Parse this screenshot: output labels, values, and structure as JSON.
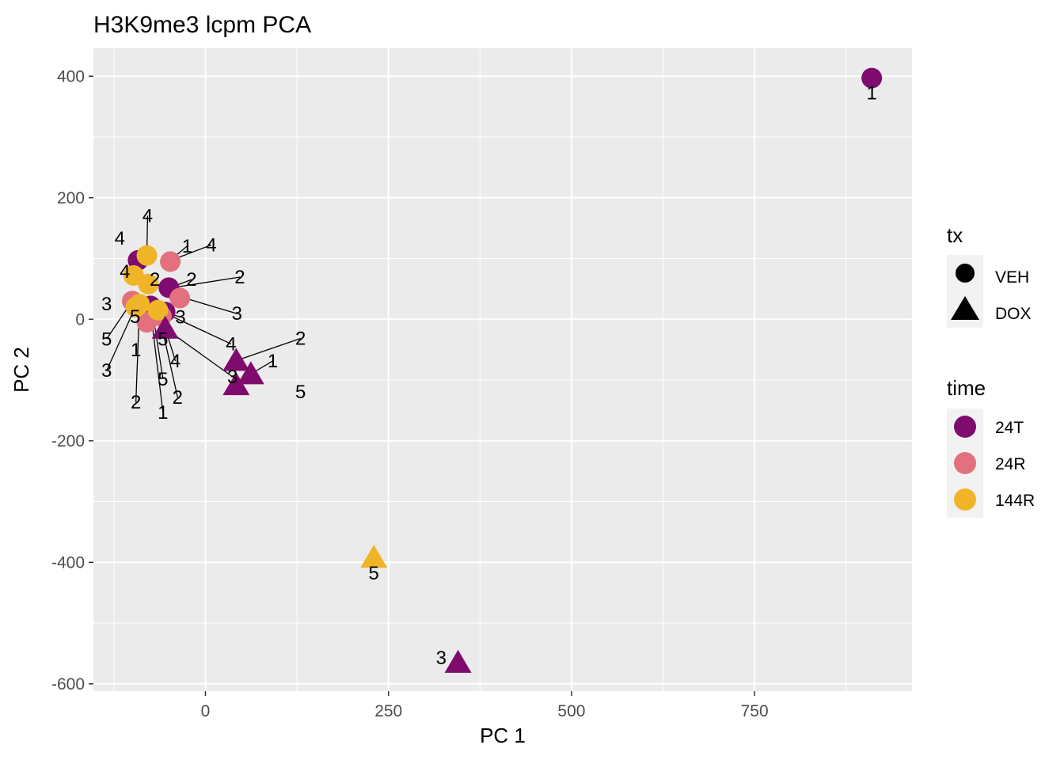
{
  "chart_data": {
    "type": "scatter",
    "title": "H3K9me3 lcpm PCA",
    "xlabel": "PC 1",
    "ylabel": "PC 2",
    "xlim": [
      -153,
      965
    ],
    "ylim": [
      -612,
      446
    ],
    "xticks": [
      0,
      250,
      500,
      750
    ],
    "xtick_labels": [
      "0",
      "250",
      "500",
      "750"
    ],
    "yticks": [
      -600,
      -400,
      -200,
      0,
      200,
      400
    ],
    "ytick_labels": [
      "-600",
      "-400",
      "-200",
      "0",
      "200",
      "400"
    ],
    "grid": true,
    "colors": {
      "24T": "#7f0b6e",
      "24R": "#e2707e",
      "144R": "#f0b429"
    },
    "legends": {
      "position": "right",
      "tx": {
        "title": "tx",
        "items": [
          {
            "label": "VEH",
            "shape": "circle"
          },
          {
            "label": "DOX",
            "shape": "triangle"
          }
        ]
      },
      "time": {
        "title": "time",
        "items": [
          {
            "label": "24T"
          },
          {
            "label": "24R"
          },
          {
            "label": "144R"
          }
        ]
      }
    },
    "points": [
      {
        "x": 910,
        "y": 397,
        "tx": "VEH",
        "time": "24T",
        "label": "1"
      },
      {
        "x": -92,
        "y": 97,
        "tx": "VEH",
        "time": "24T",
        "label": "4"
      },
      {
        "x": -50,
        "y": 52,
        "tx": "VEH",
        "time": "24T",
        "label": "2"
      },
      {
        "x": -75,
        "y": 22,
        "tx": "VEH",
        "time": "24T",
        "label": "5"
      },
      {
        "x": -55,
        "y": 12,
        "tx": "VEH",
        "time": "24T",
        "label": "3"
      },
      {
        "x": -48,
        "y": 95,
        "tx": "VEH",
        "time": "24R",
        "label": "1"
      },
      {
        "x": -35,
        "y": 35,
        "tx": "VEH",
        "time": "24R",
        "label": "2"
      },
      {
        "x": -100,
        "y": 30,
        "tx": "VEH",
        "time": "24R",
        "label": "3"
      },
      {
        "x": -60,
        "y": 5,
        "tx": "VEH",
        "time": "24R",
        "label": "4"
      },
      {
        "x": -80,
        "y": -5,
        "tx": "VEH",
        "time": "24R",
        "label": "5"
      },
      {
        "x": -80,
        "y": 105,
        "tx": "VEH",
        "time": "144R",
        "label": "4"
      },
      {
        "x": -78,
        "y": 58,
        "tx": "VEH",
        "time": "144R",
        "label": "2"
      },
      {
        "x": -98,
        "y": 72,
        "tx": "VEH",
        "time": "144R",
        "label": "4"
      },
      {
        "x": -90,
        "y": 25,
        "tx": "VEH",
        "time": "144R",
        "label": "5"
      },
      {
        "x": -95,
        "y": 20,
        "tx": "VEH",
        "time": "144R",
        "label": "3"
      },
      {
        "x": -65,
        "y": 15,
        "tx": "VEH",
        "time": "144R",
        "label": "1"
      },
      {
        "x": 42,
        "y": -68,
        "tx": "DOX",
        "time": "24T",
        "label": "2"
      },
      {
        "x": 62,
        "y": -90,
        "tx": "DOX",
        "time": "24T",
        "label": "1"
      },
      {
        "x": 42,
        "y": -108,
        "tx": "DOX",
        "time": "24T",
        "label": "5"
      },
      {
        "x": 345,
        "y": -565,
        "tx": "DOX",
        "time": "24T",
        "label": "3"
      },
      {
        "x": -55,
        "y": -15,
        "tx": "DOX",
        "time": "24T",
        "label": "5"
      },
      {
        "x": 230,
        "y": -392,
        "tx": "DOX",
        "time": "144R",
        "label": "5"
      }
    ],
    "labels": [
      {
        "text": "1",
        "x": 910,
        "y": 362
      },
      {
        "text": "4",
        "x": -79,
        "y": 160,
        "px": -80,
        "py": 108
      },
      {
        "text": "4",
        "x": -117,
        "y": 123
      },
      {
        "text": "4",
        "x": -110,
        "y": 68
      },
      {
        "text": "1",
        "x": -25,
        "y": 110,
        "px": -50,
        "py": 95
      },
      {
        "text": "4",
        "x": 8,
        "y": 112,
        "px": -45,
        "py": 98
      },
      {
        "text": "2",
        "x": -69,
        "y": 55
      },
      {
        "text": "2",
        "x": -19,
        "y": 55,
        "px": -48,
        "py": 52
      },
      {
        "text": "2",
        "x": 47,
        "y": 59,
        "px": -45,
        "py": 52
      },
      {
        "text": "3",
        "x": -135,
        "y": 15
      },
      {
        "text": "3",
        "x": 43,
        "y": -1,
        "px": -37,
        "py": 38
      },
      {
        "text": "5",
        "x": -96,
        "y": -6
      },
      {
        "text": "3",
        "x": -34,
        "y": -7,
        "px": -55,
        "py": 12
      },
      {
        "text": "5",
        "x": -135,
        "y": -43,
        "px": -100,
        "py": 30
      },
      {
        "text": "5",
        "x": -58,
        "y": -43
      },
      {
        "text": "4",
        "x": 35,
        "y": -51,
        "px": -55,
        "py": 10
      },
      {
        "text": "2",
        "x": 130,
        "y": -42,
        "px": 42,
        "py": -68
      },
      {
        "text": "1",
        "x": -95,
        "y": -61
      },
      {
        "text": "1",
        "x": 92,
        "y": -79,
        "px": 62,
        "py": -90
      },
      {
        "text": "4",
        "x": -41,
        "y": -79,
        "px": -60,
        "py": 5
      },
      {
        "text": "3",
        "x": -135,
        "y": -95,
        "px": -95,
        "py": 22
      },
      {
        "text": "3",
        "x": 37,
        "y": -105,
        "px": -55,
        "py": -15
      },
      {
        "text": "5",
        "x": -58,
        "y": -109,
        "px": -70,
        "py": -5
      },
      {
        "text": "5",
        "x": 130,
        "y": -130
      },
      {
        "text": "2",
        "x": -95,
        "y": -147,
        "px": -90,
        "py": 25
      },
      {
        "text": "2",
        "x": -38,
        "y": -139,
        "px": -60,
        "py": -10
      },
      {
        "text": "1",
        "x": -58,
        "y": -164,
        "px": -75,
        "py": 15
      },
      {
        "text": "5",
        "x": 230,
        "y": -428
      },
      {
        "text": "3",
        "x": 322,
        "y": -568
      }
    ]
  }
}
